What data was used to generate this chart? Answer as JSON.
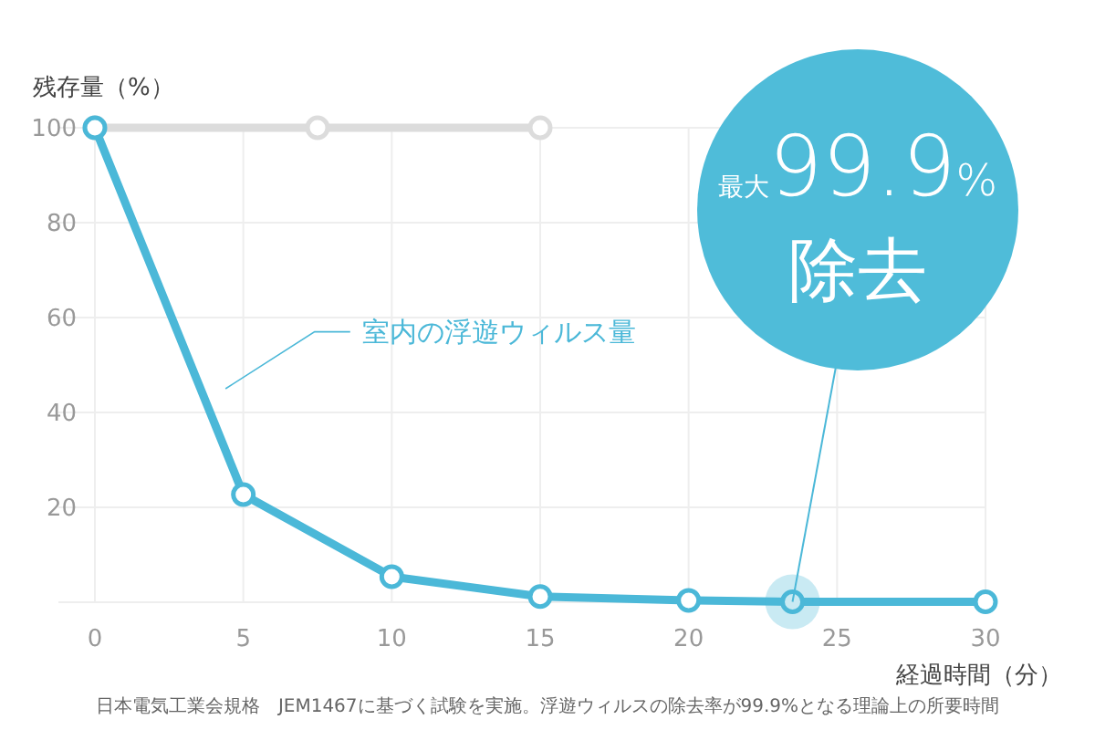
{
  "chart_data": {
    "type": "line",
    "ylabel": "残存量（%）",
    "xlabel": "経過時間（分）",
    "xlim": [
      0,
      30
    ],
    "xticks": [
      0,
      5,
      10,
      15,
      20,
      25,
      30
    ],
    "ylim": [
      0,
      100
    ],
    "yticks": [
      {
        "value": 0,
        "label": null
      },
      20,
      40,
      60,
      80,
      100
    ],
    "grid": true,
    "marker": "circle",
    "line_style": "solid",
    "series": [
      {
        "color": "#dcdcdc",
        "x": [
          0,
          7.5,
          15
        ],
        "values": [
          100,
          100,
          100
        ]
      },
      {
        "name": "室内の浮遊ウィルス量",
        "color": "#4bb8d8",
        "x": [
          0,
          5,
          10,
          15,
          20,
          23.5,
          30
        ],
        "values": [
          100,
          22.7,
          5.4,
          1.2,
          0.4,
          0.1,
          0.1
        ]
      }
    ],
    "annotations": [
      {
        "text": "最大99.9%\n除去",
        "x": 23.5,
        "y": 0.1
      },
      "日本電気工業会規格　JEM1467に基づく試験を実施。浮遊ウィルスの除去率が99.9%となる理論上の所要時間"
    ]
  }
}
